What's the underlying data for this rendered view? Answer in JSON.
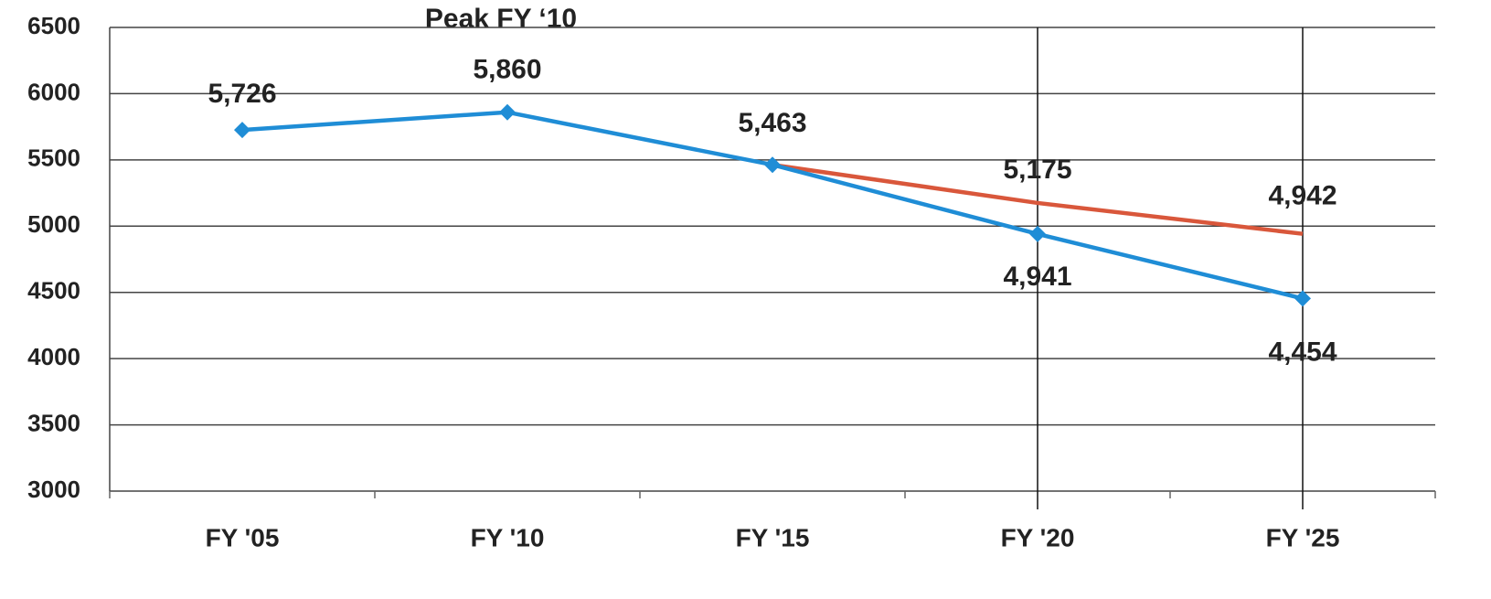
{
  "chart_data": {
    "type": "line",
    "annotations": [
      "Peak FY ‘10"
    ],
    "categories": [
      "FY '05",
      "FY '10",
      "FY '15",
      "FY '20",
      "FY '25"
    ],
    "series": [
      {
        "color": "#1f8dd6",
        "values": [
          5726,
          5860,
          5463,
          4941,
          4454
        ],
        "value_labels": [
          "5,726",
          "5,860",
          "5,463",
          "4,941",
          "4,454"
        ]
      },
      {
        "color": "#d9573b",
        "values": [
          null,
          null,
          5463,
          5175,
          4942
        ],
        "value_labels": [
          null,
          null,
          null,
          "5,175",
          "4,942"
        ]
      }
    ],
    "ylim": [
      3000,
      6500
    ],
    "yticks": [
      3000,
      3500,
      4000,
      4500,
      5000,
      5500,
      6000,
      6500
    ],
    "grid": true
  }
}
